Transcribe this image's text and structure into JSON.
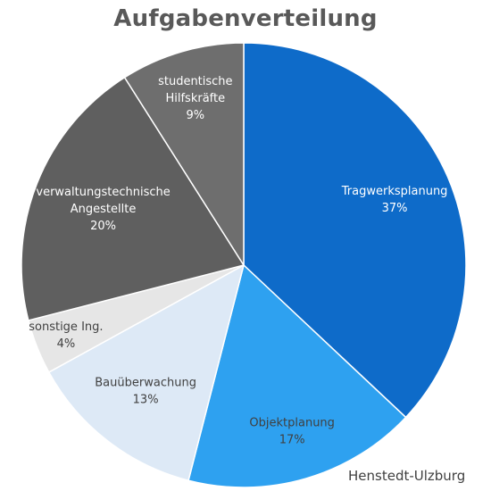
{
  "chart_data": {
    "type": "pie",
    "title": "Aufgabenverteilung",
    "annotation": "Henstedt-Ulzburg",
    "slices": [
      {
        "label": "Tragwerksplanung",
        "lines": [
          "Tragwerksplanung"
        ],
        "value": 37,
        "value_label": "37%",
        "color": "#0e6bc9",
        "text_color": "#ffffff"
      },
      {
        "label": "Objektplanung",
        "lines": [
          "Objektplanung"
        ],
        "value": 17,
        "value_label": "17%",
        "color": "#2ea1f0",
        "text_color": "#404040"
      },
      {
        "label": "Bauüberwachung",
        "lines": [
          "Bauüberwachung"
        ],
        "value": 13,
        "value_label": "13%",
        "color": "#dde9f6",
        "text_color": "#404040"
      },
      {
        "label": "sonstige Ing.",
        "lines": [
          "sonstige Ing."
        ],
        "value": 4,
        "value_label": "4%",
        "color": "#e6e6e6",
        "text_color": "#404040"
      },
      {
        "label": "verwaltungstechnische Angestellte",
        "lines": [
          "verwaltungstechnische",
          "Angestellte"
        ],
        "value": 20,
        "value_label": "20%",
        "color": "#5f5f5f",
        "text_color": "#ffffff"
      },
      {
        "label": "studentische Hilfskräfte",
        "lines": [
          "studentische",
          "Hilfskräfte"
        ],
        "value": 9,
        "value_label": "9%",
        "color": "#6e6e6e",
        "text_color": "#ffffff"
      }
    ]
  }
}
